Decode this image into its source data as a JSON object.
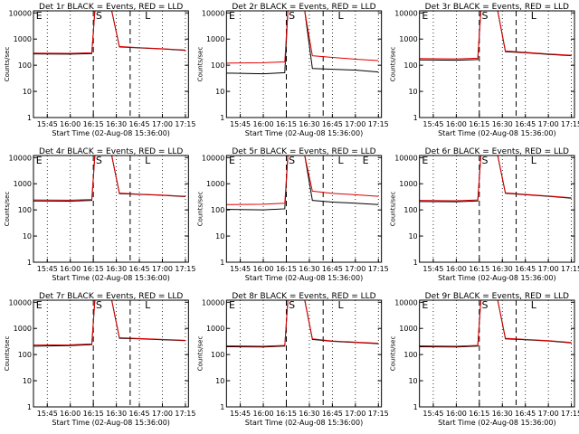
{
  "colors": {
    "events": "#000000",
    "lld": "#e00000",
    "axis": "#000000",
    "background": "#ffffff"
  },
  "shared": {
    "ylabel": "Counts/sec",
    "xlabel": "Start Time (02-Aug-08 15:36:00)",
    "x_tick_labels": [
      "15:45",
      "16:00",
      "16:15",
      "16:30",
      "16:45",
      "17:00",
      "17:15"
    ],
    "y_tick_labels": [
      "1",
      "10",
      "100",
      "1000",
      "10000"
    ],
    "marker_labels": {
      "E": "E",
      "S": "S",
      "L": "L"
    }
  },
  "chart_data": [
    {
      "type": "line",
      "title": "Det 1r BLACK = Events, RED = LLD",
      "markers": [
        "E",
        "S",
        "L"
      ],
      "xlim": [
        "15:36",
        "17:17"
      ],
      "ylim": [
        1,
        12000
      ],
      "yscale": "log",
      "grid": "vertical dotted at 15:45, 16:00, 16:30, 16:45, 17:00, 17:15; dashed at 16:15 and 16:39",
      "series": [
        {
          "name": "Events",
          "color": "#000000",
          "values": [
            {
              "x": "15:36",
              "y": 270
            },
            {
              "x": "16:00",
              "y": 265
            },
            {
              "x": "16:14",
              "y": 280
            },
            {
              "x": "16:16",
              "y": 12000
            },
            {
              "x": "16:27",
              "y": 12000
            },
            {
              "x": "16:32",
              "y": 500
            },
            {
              "x": "16:45",
              "y": 460
            },
            {
              "x": "17:00",
              "y": 420
            },
            {
              "x": "17:15",
              "y": 370
            }
          ]
        },
        {
          "name": "LLD",
          "color": "#e00000",
          "values": [
            {
              "x": "15:36",
              "y": 290
            },
            {
              "x": "16:00",
              "y": 285
            },
            {
              "x": "16:14",
              "y": 300
            },
            {
              "x": "16:16",
              "y": 12000
            },
            {
              "x": "16:27",
              "y": 12000
            },
            {
              "x": "16:32",
              "y": 520
            },
            {
              "x": "16:45",
              "y": 470
            },
            {
              "x": "17:00",
              "y": 430
            },
            {
              "x": "17:15",
              "y": 380
            }
          ]
        }
      ]
    },
    {
      "type": "line",
      "title": "Det 2r BLACK = Events, RED = LLD",
      "markers": [
        "E",
        "S",
        "L"
      ],
      "xlim": [
        "15:36",
        "17:17"
      ],
      "ylim": [
        1,
        12000
      ],
      "yscale": "log",
      "grid": "vertical dotted at 15:45, 16:00, 16:30, 16:45, 17:00, 17:15; dashed at 16:15 and 16:39",
      "series": [
        {
          "name": "Events",
          "color": "#000000",
          "values": [
            {
              "x": "15:36",
              "y": 50
            },
            {
              "x": "16:00",
              "y": 47
            },
            {
              "x": "16:14",
              "y": 52
            },
            {
              "x": "16:16",
              "y": 12000
            },
            {
              "x": "16:27",
              "y": 12000
            },
            {
              "x": "16:32",
              "y": 75
            },
            {
              "x": "16:45",
              "y": 70
            },
            {
              "x": "17:00",
              "y": 65
            },
            {
              "x": "17:15",
              "y": 55
            }
          ]
        },
        {
          "name": "LLD",
          "color": "#e00000",
          "values": [
            {
              "x": "15:36",
              "y": 120
            },
            {
              "x": "16:00",
              "y": 125
            },
            {
              "x": "16:14",
              "y": 135
            },
            {
              "x": "16:16",
              "y": 12000
            },
            {
              "x": "16:27",
              "y": 12000
            },
            {
              "x": "16:32",
              "y": 230
            },
            {
              "x": "16:45",
              "y": 200
            },
            {
              "x": "17:00",
              "y": 170
            },
            {
              "x": "17:15",
              "y": 150
            }
          ]
        }
      ]
    },
    {
      "type": "line",
      "title": "Det 3r BLACK = Events, RED = LLD",
      "markers": [
        "E",
        "S",
        "L"
      ],
      "xlim": [
        "15:36",
        "17:17"
      ],
      "ylim": [
        1,
        12000
      ],
      "yscale": "log",
      "grid": "vertical dotted at 15:45, 16:00, 16:30, 16:45, 17:00, 17:15; dashed at 16:15 and 16:39",
      "series": [
        {
          "name": "Events",
          "color": "#000000",
          "values": [
            {
              "x": "15:36",
              "y": 160
            },
            {
              "x": "16:00",
              "y": 155
            },
            {
              "x": "16:14",
              "y": 165
            },
            {
              "x": "16:16",
              "y": 12000
            },
            {
              "x": "16:27",
              "y": 12000
            },
            {
              "x": "16:32",
              "y": 330
            },
            {
              "x": "16:45",
              "y": 300
            },
            {
              "x": "17:00",
              "y": 260
            },
            {
              "x": "17:15",
              "y": 230
            }
          ]
        },
        {
          "name": "LLD",
          "color": "#e00000",
          "values": [
            {
              "x": "15:36",
              "y": 180
            },
            {
              "x": "16:00",
              "y": 175
            },
            {
              "x": "16:14",
              "y": 185
            },
            {
              "x": "16:16",
              "y": 12000
            },
            {
              "x": "16:27",
              "y": 12000
            },
            {
              "x": "16:32",
              "y": 350
            },
            {
              "x": "16:45",
              "y": 310
            },
            {
              "x": "17:00",
              "y": 270
            },
            {
              "x": "17:15",
              "y": 240
            }
          ]
        }
      ]
    },
    {
      "type": "line",
      "title": "Det 4r BLACK = Events, RED = LLD",
      "markers": [
        "E",
        "S",
        "L"
      ],
      "xlim": [
        "15:36",
        "17:17"
      ],
      "ylim": [
        1,
        12000
      ],
      "yscale": "log",
      "grid": "vertical dotted at 15:45, 16:00, 16:30, 16:45, 17:00, 17:15; dashed at 16:15 and 16:39",
      "series": [
        {
          "name": "Events",
          "color": "#000000",
          "values": [
            {
              "x": "15:36",
              "y": 220
            },
            {
              "x": "16:00",
              "y": 215
            },
            {
              "x": "16:14",
              "y": 230
            },
            {
              "x": "16:16",
              "y": 12000
            },
            {
              "x": "16:27",
              "y": 12000
            },
            {
              "x": "16:32",
              "y": 420
            },
            {
              "x": "16:45",
              "y": 390
            },
            {
              "x": "17:00",
              "y": 360
            },
            {
              "x": "17:15",
              "y": 320
            }
          ]
        },
        {
          "name": "LLD",
          "color": "#e00000",
          "values": [
            {
              "x": "15:36",
              "y": 240
            },
            {
              "x": "16:00",
              "y": 235
            },
            {
              "x": "16:14",
              "y": 250
            },
            {
              "x": "16:16",
              "y": 12000
            },
            {
              "x": "16:27",
              "y": 12000
            },
            {
              "x": "16:32",
              "y": 440
            },
            {
              "x": "16:45",
              "y": 400
            },
            {
              "x": "17:00",
              "y": 370
            },
            {
              "x": "17:15",
              "y": 330
            }
          ]
        }
      ]
    },
    {
      "type": "line",
      "title": "Det 5r BLACK = Events, RED = LLD",
      "markers": [
        "E",
        "S",
        "L",
        "E"
      ],
      "xlim": [
        "15:36",
        "17:17"
      ],
      "ylim": [
        1,
        12000
      ],
      "yscale": "log",
      "grid": "vertical dotted at 15:45, 16:00, 16:30, 16:45, 17:00, 17:15; dashed at 16:15 and 16:39",
      "series": [
        {
          "name": "Events",
          "color": "#000000",
          "values": [
            {
              "x": "15:36",
              "y": 105
            },
            {
              "x": "16:00",
              "y": 100
            },
            {
              "x": "16:14",
              "y": 110
            },
            {
              "x": "16:16",
              "y": 12000
            },
            {
              "x": "16:27",
              "y": 12000
            },
            {
              "x": "16:32",
              "y": 230
            },
            {
              "x": "16:45",
              "y": 200
            },
            {
              "x": "17:00",
              "y": 180
            },
            {
              "x": "17:15",
              "y": 160
            }
          ]
        },
        {
          "name": "LLD",
          "color": "#e00000",
          "values": [
            {
              "x": "15:36",
              "y": 160
            },
            {
              "x": "16:00",
              "y": 165
            },
            {
              "x": "16:14",
              "y": 180
            },
            {
              "x": "16:16",
              "y": 12000
            },
            {
              "x": "16:27",
              "y": 12000
            },
            {
              "x": "16:32",
              "y": 520
            },
            {
              "x": "16:45",
              "y": 430
            },
            {
              "x": "17:00",
              "y": 380
            },
            {
              "x": "17:15",
              "y": 330
            }
          ]
        }
      ]
    },
    {
      "type": "line",
      "title": "Det 6r BLACK = Events, RED = LLD",
      "markers": [
        "E",
        "S",
        "L"
      ],
      "xlim": [
        "15:36",
        "17:17"
      ],
      "ylim": [
        1,
        12000
      ],
      "yscale": "log",
      "grid": "vertical dotted at 15:45, 16:00, 16:30, 16:45, 17:00, 17:15; dashed at 16:15 and 16:39",
      "series": [
        {
          "name": "Events",
          "color": "#000000",
          "values": [
            {
              "x": "15:36",
              "y": 210
            },
            {
              "x": "16:00",
              "y": 205
            },
            {
              "x": "16:14",
              "y": 220
            },
            {
              "x": "16:16",
              "y": 12000
            },
            {
              "x": "16:27",
              "y": 12000
            },
            {
              "x": "16:32",
              "y": 430
            },
            {
              "x": "16:45",
              "y": 380
            },
            {
              "x": "17:00",
              "y": 330
            },
            {
              "x": "17:15",
              "y": 280
            }
          ]
        },
        {
          "name": "LLD",
          "color": "#e00000",
          "values": [
            {
              "x": "15:36",
              "y": 230
            },
            {
              "x": "16:00",
              "y": 225
            },
            {
              "x": "16:14",
              "y": 240
            },
            {
              "x": "16:16",
              "y": 12000
            },
            {
              "x": "16:27",
              "y": 12000
            },
            {
              "x": "16:32",
              "y": 450
            },
            {
              "x": "16:45",
              "y": 390
            },
            {
              "x": "17:00",
              "y": 340
            },
            {
              "x": "17:15",
              "y": 290
            }
          ]
        }
      ]
    },
    {
      "type": "line",
      "title": "Det 7r BLACK = Events, RED = LLD",
      "markers": [
        "E",
        "S",
        "L"
      ],
      "xlim": [
        "15:36",
        "17:17"
      ],
      "ylim": [
        1,
        12000
      ],
      "yscale": "log",
      "grid": "vertical dotted at 15:45, 16:00, 16:30, 16:45, 17:00, 17:15; dashed at 16:15 and 16:39",
      "series": [
        {
          "name": "Events",
          "color": "#000000",
          "values": [
            {
              "x": "15:36",
              "y": 210
            },
            {
              "x": "16:00",
              "y": 220
            },
            {
              "x": "16:14",
              "y": 240
            },
            {
              "x": "16:16",
              "y": 12000
            },
            {
              "x": "16:27",
              "y": 12000
            },
            {
              "x": "16:32",
              "y": 420
            },
            {
              "x": "16:45",
              "y": 400
            },
            {
              "x": "17:00",
              "y": 370
            },
            {
              "x": "17:15",
              "y": 340
            }
          ]
        },
        {
          "name": "LLD",
          "color": "#e00000",
          "values": [
            {
              "x": "15:36",
              "y": 230
            },
            {
              "x": "16:00",
              "y": 235
            },
            {
              "x": "16:14",
              "y": 255
            },
            {
              "x": "16:16",
              "y": 12000
            },
            {
              "x": "16:27",
              "y": 12000
            },
            {
              "x": "16:32",
              "y": 440
            },
            {
              "x": "16:45",
              "y": 410
            },
            {
              "x": "17:00",
              "y": 380
            },
            {
              "x": "17:15",
              "y": 350
            }
          ]
        }
      ]
    },
    {
      "type": "line",
      "title": "Det 8r BLACK = Events, RED = LLD",
      "markers": [
        "E",
        "S",
        "L"
      ],
      "xlim": [
        "15:36",
        "17:17"
      ],
      "ylim": [
        1,
        12000
      ],
      "yscale": "log",
      "grid": "vertical dotted at 15:45, 16:00, 16:30, 16:45, 17:00, 17:15; dashed at 16:15 and 16:39",
      "series": [
        {
          "name": "Events",
          "color": "#000000",
          "values": [
            {
              "x": "15:36",
              "y": 200
            },
            {
              "x": "16:00",
              "y": 195
            },
            {
              "x": "16:14",
              "y": 210
            },
            {
              "x": "16:16",
              "y": 12000
            },
            {
              "x": "16:27",
              "y": 12000
            },
            {
              "x": "16:32",
              "y": 380
            },
            {
              "x": "16:45",
              "y": 320
            },
            {
              "x": "17:00",
              "y": 290
            },
            {
              "x": "17:15",
              "y": 260
            }
          ]
        },
        {
          "name": "LLD",
          "color": "#e00000",
          "values": [
            {
              "x": "15:36",
              "y": 215
            },
            {
              "x": "16:00",
              "y": 210
            },
            {
              "x": "16:14",
              "y": 225
            },
            {
              "x": "16:16",
              "y": 12000
            },
            {
              "x": "16:27",
              "y": 12000
            },
            {
              "x": "16:32",
              "y": 400
            },
            {
              "x": "16:45",
              "y": 330
            },
            {
              "x": "17:00",
              "y": 300
            },
            {
              "x": "17:15",
              "y": 270
            }
          ]
        }
      ]
    },
    {
      "type": "line",
      "title": "Det 9r BLACK = Events, RED = LLD",
      "markers": [
        "E",
        "S",
        "L"
      ],
      "xlim": [
        "15:36",
        "17:17"
      ],
      "ylim": [
        1,
        12000
      ],
      "yscale": "log",
      "grid": "vertical dotted at 15:45, 16:00, 16:30, 16:45, 17:00, 17:15; dashed at 16:15 and 16:39",
      "series": [
        {
          "name": "Events",
          "color": "#000000",
          "values": [
            {
              "x": "15:36",
              "y": 200
            },
            {
              "x": "16:00",
              "y": 195
            },
            {
              "x": "16:14",
              "y": 210
            },
            {
              "x": "16:16",
              "y": 12000
            },
            {
              "x": "16:27",
              "y": 12000
            },
            {
              "x": "16:32",
              "y": 400
            },
            {
              "x": "16:45",
              "y": 370
            },
            {
              "x": "17:00",
              "y": 330
            },
            {
              "x": "17:15",
              "y": 280
            }
          ]
        },
        {
          "name": "LLD",
          "color": "#e00000",
          "values": [
            {
              "x": "15:36",
              "y": 215
            },
            {
              "x": "16:00",
              "y": 210
            },
            {
              "x": "16:14",
              "y": 225
            },
            {
              "x": "16:16",
              "y": 12000
            },
            {
              "x": "16:27",
              "y": 12000
            },
            {
              "x": "16:32",
              "y": 420
            },
            {
              "x": "16:45",
              "y": 380
            },
            {
              "x": "17:00",
              "y": 340
            },
            {
              "x": "17:15",
              "y": 290
            }
          ]
        }
      ]
    }
  ]
}
